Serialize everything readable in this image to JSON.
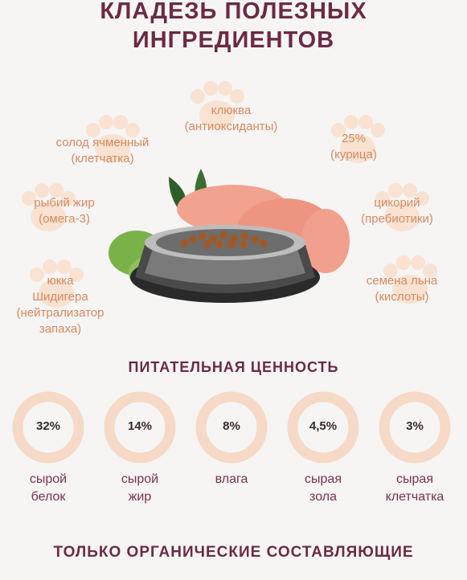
{
  "title_line1": "КЛАДЕЗЬ ПОЛЕЗНЫХ",
  "title_line2": "ИНГРЕДИЕНТОВ",
  "ingredients": {
    "cranberry": "клюква\n(антиоксиданты)",
    "malt": "солод ячменный\n(клетчатка)",
    "chicken": "25%\n(курица)",
    "fishoil": "рыбий жир\n(омега-3)",
    "chicory": "цикорий\n(пребиотики)",
    "yucca": "юкка\nШидигера\n(нейтрализатор\nзапаха)",
    "flax": "семена льна\n(кислоты)"
  },
  "nutrition_title": "ПИТАТЕЛЬНАЯ ЦЕННОСТЬ",
  "nutrients": [
    {
      "value": "32%",
      "label": "сырой\nбелок"
    },
    {
      "value": "14%",
      "label": "сырой\nжир"
    },
    {
      "value": "8%",
      "label": "влага"
    },
    {
      "value": "4,5%",
      "label": "сырая\nзола"
    },
    {
      "value": "3%",
      "label": "сырая\nклетчатка"
    }
  ],
  "footer": "ТОЛЬКО ОРГАНИЧЕСКИЕ СОСТАВЛЯЮЩИЕ",
  "colors": {
    "title": "#6b2a45",
    "accent": "#d9885e",
    "ring": "#f6d9c6",
    "paw": "#f9e2d1"
  }
}
